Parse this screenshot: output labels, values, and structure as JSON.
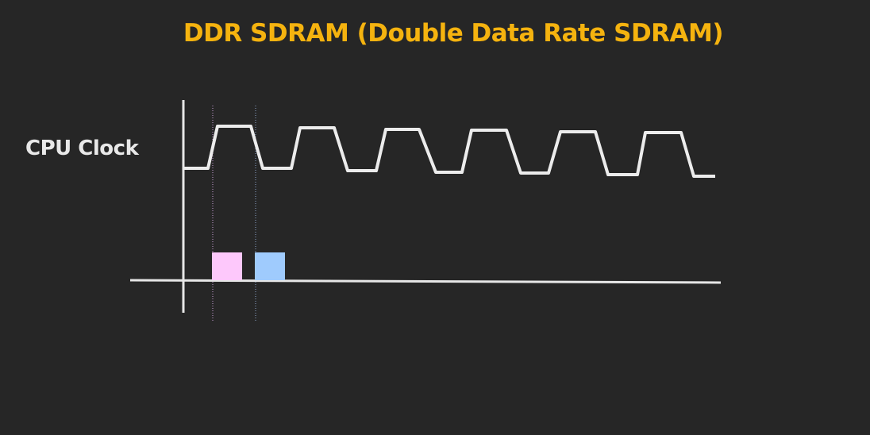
{
  "title": "DDR SDRAM (Double Data Rate SDRAM)",
  "signal_label": "CPU Clock",
  "colors": {
    "background": "#262626",
    "title": "#f5b30f",
    "text": "#e8e8e8",
    "axis": "#e6e6e6",
    "waveform": "#ececec",
    "rising_edge_block": "#fdc8fb",
    "falling_edge_block": "#9fcbfd",
    "guide_rising": "#c9a0d8",
    "guide_falling": "#8fa6cc"
  },
  "diagram": {
    "clock_cycles_shown": 6,
    "data_transfers_per_cycle": 2,
    "transfers": [
      {
        "edge": "rising",
        "color_key": "rising_edge_block"
      },
      {
        "edge": "falling",
        "color_key": "falling_edge_block"
      }
    ]
  }
}
